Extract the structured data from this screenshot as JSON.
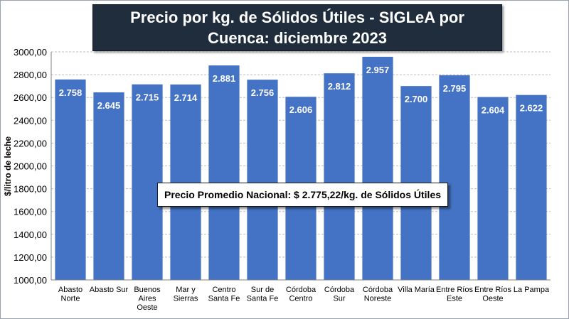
{
  "chart_data": {
    "type": "bar",
    "title": "Precio por kg. de Sólidos Útiles - SIGLeA por Cuenca: diciembre 2023",
    "xlabel": "",
    "ylabel": "$/litro de leche",
    "ylim": [
      1000,
      3000
    ],
    "yticks": [
      "1000,00",
      "1200,00",
      "1400,00",
      "1600,00",
      "1800,00",
      "2000,00",
      "2200,00",
      "2400,00",
      "2600,00",
      "2800,00",
      "3000,00"
    ],
    "ytick_values": [
      1000,
      1200,
      1400,
      1600,
      1800,
      2000,
      2200,
      2400,
      2600,
      2800,
      3000
    ],
    "grid": true,
    "categories": [
      [
        "Abasto",
        "Norte"
      ],
      [
        "Abasto Sur"
      ],
      [
        "Buenos",
        "Aires",
        "Oeste"
      ],
      [
        "Mar y",
        "Sierras"
      ],
      [
        "Centro",
        "Santa Fe"
      ],
      [
        "Sur de",
        "Santa Fe"
      ],
      [
        "Córdoba",
        "Centro"
      ],
      [
        "Córdoba",
        "Sur"
      ],
      [
        "Córdoba",
        "Noreste"
      ],
      [
        "Villa María"
      ],
      [
        "Entre Ríos",
        "Este"
      ],
      [
        "Entre Ríos",
        "Oeste"
      ],
      [
        "La Pampa"
      ]
    ],
    "values": [
      2758,
      2645,
      2715,
      2714,
      2881,
      2756,
      2606,
      2812,
      2957,
      2700,
      2795,
      2604,
      2622
    ],
    "value_labels": [
      "2.758",
      "2.645",
      "2.715",
      "2.714",
      "2.881",
      "2.756",
      "2.606",
      "2.812",
      "2.957",
      "2.700",
      "2.795",
      "2.604",
      "2.622"
    ],
    "annotation": "Precio Promedio Nacional: $ 2.775,22/kg. de Sólidos Útiles"
  },
  "colors": {
    "bar": "#4472c4",
    "title_bg": "#1f2d3d",
    "grid": "#bfbfbf"
  }
}
